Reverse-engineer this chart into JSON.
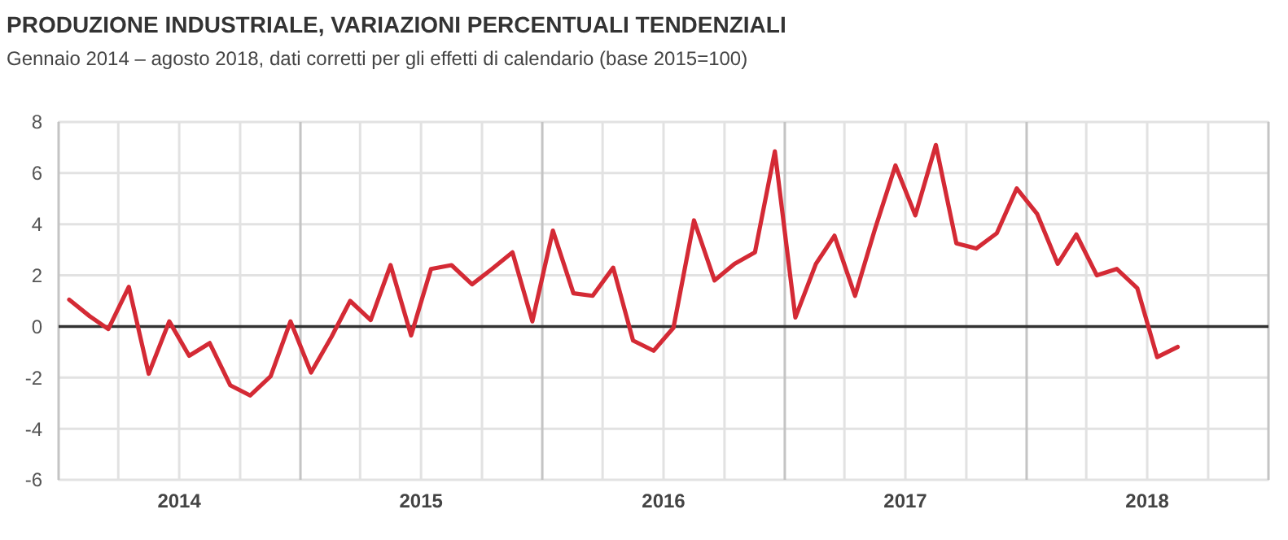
{
  "chart_data": {
    "type": "line",
    "title": "PRODUZIONE INDUSTRIALE, VARIAZIONI PERCENTUALI TENDENZIALI",
    "subtitle": "Gennaio 2014 – agosto 2018, dati corretti per gli effetti di calendario (base 2015=100)",
    "x": [
      "2014-01",
      "2014-02",
      "2014-03",
      "2014-04",
      "2014-05",
      "2014-06",
      "2014-07",
      "2014-08",
      "2014-09",
      "2014-10",
      "2014-11",
      "2014-12",
      "2015-01",
      "2015-02",
      "2015-03",
      "2015-04",
      "2015-05",
      "2015-06",
      "2015-07",
      "2015-08",
      "2015-09",
      "2015-10",
      "2015-11",
      "2015-12",
      "2016-01",
      "2016-02",
      "2016-03",
      "2016-04",
      "2016-05",
      "2016-06",
      "2016-07",
      "2016-08",
      "2016-09",
      "2016-10",
      "2016-11",
      "2016-12",
      "2017-01",
      "2017-02",
      "2017-03",
      "2017-04",
      "2017-05",
      "2017-06",
      "2017-07",
      "2017-08",
      "2017-09",
      "2017-10",
      "2017-11",
      "2017-12",
      "2018-01",
      "2018-02",
      "2018-03",
      "2018-04",
      "2018-05",
      "2018-06",
      "2018-07",
      "2018-08"
    ],
    "series": [
      {
        "color": "#d42a35",
        "values": [
          1.05,
          0.4,
          -0.1,
          1.55,
          -1.85,
          0.2,
          -1.15,
          -0.65,
          -2.3,
          -2.7,
          -1.95,
          0.2,
          -1.8,
          -0.4,
          1.0,
          0.25,
          2.4,
          -0.35,
          2.25,
          2.4,
          1.65,
          2.25,
          2.9,
          0.2,
          3.75,
          1.3,
          1.2,
          2.3,
          -0.55,
          -0.95,
          -0.05,
          4.15,
          1.8,
          2.45,
          2.9,
          6.85,
          0.35,
          2.45,
          3.55,
          1.2,
          3.8,
          6.3,
          4.35,
          7.1,
          3.25,
          3.05,
          3.65,
          5.4,
          4.4,
          2.45,
          3.6,
          2.0,
          2.25,
          1.5,
          -1.2,
          -0.8
        ]
      }
    ],
    "xlim": [
      "2013-12-16",
      "2018-12-16"
    ],
    "xticks": [
      {
        "value": "2013-12-16",
        "label": null
      },
      {
        "value": "2014-03-16",
        "label": null
      },
      {
        "value": "2014-06-16",
        "label": "2014"
      },
      {
        "value": "2014-09-16",
        "label": null
      },
      {
        "value": "2014-12-16",
        "label": null
      },
      {
        "value": "2015-03-16",
        "label": null
      },
      {
        "value": "2015-06-16",
        "label": "2015"
      },
      {
        "value": "2015-09-16",
        "label": null
      },
      {
        "value": "2015-12-16",
        "label": null
      },
      {
        "value": "2016-03-16",
        "label": null
      },
      {
        "value": "2016-06-16",
        "label": "2016"
      },
      {
        "value": "2016-09-16",
        "label": null
      },
      {
        "value": "2016-12-16",
        "label": null
      },
      {
        "value": "2017-03-16",
        "label": null
      },
      {
        "value": "2017-06-16",
        "label": "2017"
      },
      {
        "value": "2017-09-16",
        "label": null
      },
      {
        "value": "2017-12-16",
        "label": null
      },
      {
        "value": "2018-03-16",
        "label": null
      },
      {
        "value": "2018-06-16",
        "label": "2018"
      },
      {
        "value": "2018-09-16",
        "label": null
      },
      {
        "value": "2018-12-16",
        "label": null
      }
    ],
    "ylim": [
      -6,
      8
    ],
    "yticks": [
      -6,
      -4,
      -2,
      0,
      2,
      4,
      6,
      8
    ],
    "ref_lines": [
      {
        "axis": "y",
        "value": 0,
        "color": "#333333"
      }
    ],
    "grid": true,
    "marker": "none",
    "line_style": "solid"
  }
}
